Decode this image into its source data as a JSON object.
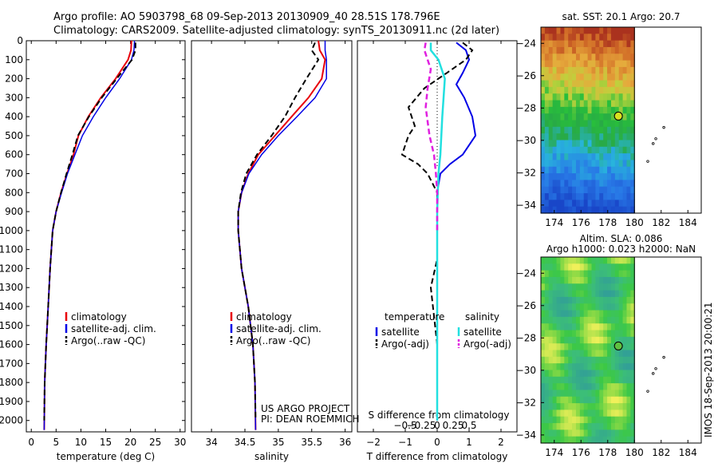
{
  "header": {
    "line1": "Argo profile: AO 5903798_68 09-Sep-2013 20130909_40 28.51S 178.796E",
    "line2": "Climatology: CARS2009. Satellite-adjusted climatology: synTS_20130911.nc (2d later)"
  },
  "footer_credit": "IMOS 18-Sep-2013 20:00:21",
  "colors": {
    "climatology": "#e8000b",
    "satellite": "#0000e6",
    "argo": "#000000",
    "salinity_sat": "#22e0e0",
    "salinity_argo": "#e020e0"
  },
  "chart_data": [
    {
      "type": "line",
      "xlabel": "temperature (deg C)",
      "ylabel": "",
      "xlim": [
        -1,
        31
      ],
      "ylim": [
        2060,
        0
      ],
      "xticks": [
        0,
        5,
        10,
        15,
        20,
        25,
        30
      ],
      "yticks": [
        0,
        100,
        200,
        300,
        400,
        500,
        600,
        700,
        800,
        900,
        1000,
        1100,
        1200,
        1300,
        1400,
        1500,
        1600,
        1700,
        1800,
        1900,
        2000
      ],
      "legend": [
        "climatology",
        "satellite-adj. clim.",
        "Argo(..raw -QC)"
      ],
      "legend_placement": "lower-right",
      "series": [
        {
          "name": "climatology",
          "x": [
            20.2,
            20.1,
            19.5,
            17.0,
            14.0,
            11.5,
            9.5,
            8.5,
            7.2,
            6.0,
            5.0,
            4.3,
            3.8,
            3.4,
            3.0,
            2.7,
            2.6
          ],
          "y": [
            0,
            50,
            100,
            200,
            300,
            400,
            500,
            600,
            700,
            800,
            900,
            1000,
            1200,
            1400,
            1600,
            1800,
            2050
          ]
        },
        {
          "name": "satellite-adj. clim.",
          "x": [
            20.8,
            20.7,
            20.2,
            17.8,
            15.0,
            12.5,
            10.3,
            8.8,
            7.3,
            6.1,
            5.0,
            4.3,
            3.8,
            3.4,
            3.0,
            2.7,
            2.6
          ],
          "y": [
            0,
            50,
            100,
            200,
            300,
            400,
            500,
            600,
            700,
            800,
            900,
            1000,
            1200,
            1400,
            1600,
            1800,
            2050
          ]
        },
        {
          "name": "Argo(..raw -QC)",
          "x": [
            21.0,
            21.0,
            20.3,
            17.2,
            14.2,
            11.6,
            9.4,
            8.3,
            7.1,
            6.0,
            5.0,
            4.3,
            3.8,
            3.4,
            3.0,
            2.7,
            2.6
          ],
          "y": [
            10,
            50,
            100,
            200,
            300,
            400,
            500,
            600,
            700,
            800,
            900,
            1000,
            1200,
            1400,
            1600,
            1800,
            2000
          ]
        }
      ]
    },
    {
      "type": "line",
      "xlabel": "salinity",
      "ylabel": "",
      "xlim": [
        33.7,
        36.1
      ],
      "ylim": [
        2060,
        0
      ],
      "xticks": [
        34,
        34.5,
        35,
        35.5,
        36
      ],
      "xticklabels": [
        "34",
        "34.5",
        "35",
        "35.5",
        "36"
      ],
      "legend": [
        "climatology",
        "satellite-adj. clim.",
        "Argo(..raw -QC)"
      ],
      "legend_placement": "lower-right",
      "annotation": [
        "US ARGO PROJECT",
        "PI: DEAN ROEMMICH"
      ],
      "series": [
        {
          "name": "climatology",
          "x": [
            35.6,
            35.62,
            35.7,
            35.65,
            35.45,
            35.2,
            34.95,
            34.7,
            34.55,
            34.45,
            34.4,
            34.4,
            34.45,
            34.55,
            34.62,
            34.65,
            34.66
          ],
          "y": [
            0,
            50,
            100,
            200,
            300,
            400,
            500,
            600,
            700,
            800,
            900,
            1000,
            1200,
            1400,
            1600,
            1800,
            2050
          ]
        },
        {
          "name": "satellite-adj. clim.",
          "x": [
            35.7,
            35.7,
            35.72,
            35.72,
            35.55,
            35.28,
            35.0,
            34.75,
            34.56,
            34.45,
            34.4,
            34.4,
            34.45,
            34.55,
            34.62,
            34.65,
            34.66
          ],
          "y": [
            0,
            50,
            100,
            200,
            300,
            400,
            500,
            600,
            700,
            800,
            900,
            1000,
            1200,
            1400,
            1600,
            1800,
            2050
          ]
        },
        {
          "name": "Argo(..raw -QC)",
          "x": [
            35.55,
            35.5,
            35.6,
            35.42,
            35.25,
            35.1,
            34.9,
            34.68,
            34.52,
            34.44,
            34.4,
            34.4,
            34.45,
            34.55,
            34.62,
            34.65,
            34.66
          ],
          "y": [
            10,
            50,
            100,
            200,
            300,
            400,
            500,
            600,
            700,
            800,
            900,
            1000,
            1200,
            1400,
            1600,
            1800,
            2000
          ]
        }
      ]
    },
    {
      "type": "line",
      "xlabel": "T difference from climatology",
      "xlabel_top": "S difference from climatology",
      "ylabel": "",
      "xlim": [
        -2.5,
        2.5
      ],
      "ylim": [
        2060,
        0
      ],
      "xticks": [
        -2,
        -1,
        0,
        1,
        2
      ],
      "xticklabels": [
        "−2",
        "−1",
        "0",
        "1",
        "2"
      ],
      "xticks_top": [
        -0.5,
        -0.25,
        0,
        0.25,
        0.5
      ],
      "xticklabels_top": [
        "−0.5",
        "−0.25",
        "0",
        "0.25",
        "0.5"
      ],
      "legend_groups": [
        {
          "title": "temperature",
          "entries": [
            "satellite",
            "Argo(-adj)"
          ]
        },
        {
          "title": "salinity",
          "entries": [
            "satellite",
            "Argo(-adj)"
          ]
        }
      ],
      "legend_placement": "lower-center",
      "series": [
        {
          "name": "temperature satellite",
          "x": [
            0.6,
            0.9,
            1.0,
            0.8,
            0.6,
            0.85,
            1.1,
            1.2,
            1.0,
            0.8,
            0.4,
            0.1,
            0,
            0,
            0,
            0
          ],
          "y": [
            10,
            50,
            100,
            170,
            230,
            300,
            400,
            500,
            550,
            600,
            650,
            700,
            800,
            1200,
            1600,
            2000
          ]
        },
        {
          "name": "temperature Argo(-adj)",
          "x": [
            0.8,
            1.1,
            0.9,
            0.3,
            -0.4,
            -0.9,
            -0.7,
            -0.9,
            -1.1,
            -0.6,
            -0.3,
            0,
            0,
            0,
            0,
            -0.2,
            0,
            0
          ],
          "y": [
            10,
            50,
            100,
            170,
            250,
            350,
            450,
            500,
            600,
            650,
            700,
            800,
            1000,
            1100,
            1150,
            1300,
            1600,
            2000
          ]
        },
        {
          "name": "salinity satellite",
          "x": [
            -0.1,
            -0.1,
            0.02,
            0.12,
            0.08,
            0.05,
            0.02,
            0,
            0,
            0
          ],
          "y": [
            10,
            50,
            100,
            200,
            400,
            600,
            700,
            900,
            1500,
            2000
          ]
        },
        {
          "name": "salinity Argo(-adj)",
          "x": [
            -0.18,
            -0.2,
            -0.1,
            -0.15,
            -0.18,
            -0.12,
            -0.05,
            -0.02,
            0,
            0
          ],
          "y": [
            10,
            50,
            150,
            250,
            350,
            500,
            600,
            700,
            800,
            1000
          ]
        }
      ]
    },
    {
      "type": "heatmap",
      "title": "sat. SST: 20.1  Argo: 20.7",
      "xlim": [
        173,
        185
      ],
      "ylim": [
        -34.5,
        -23
      ],
      "xticks": [
        174,
        176,
        178,
        180,
        182,
        184
      ],
      "yticks": [
        -24,
        -26,
        -28,
        -30,
        -32,
        -34
      ],
      "marker": {
        "lon": 178.8,
        "lat": -28.5
      },
      "track": [
        [
          182.2,
          -29.2
        ],
        [
          181.6,
          -29.9
        ],
        [
          181.4,
          -30.2
        ],
        [
          181.0,
          -31.3
        ]
      ]
    },
    {
      "type": "heatmap",
      "title": "Altim. SLA: 0.086",
      "subtitle": "Argo h1000: 0.023  h2000: NaN",
      "xlim": [
        173,
        185
      ],
      "ylim": [
        -34.5,
        -23
      ],
      "xticks": [
        174,
        176,
        178,
        180,
        182,
        184
      ],
      "yticks": [
        -24,
        -26,
        -28,
        -30,
        -32,
        -34
      ],
      "marker": {
        "lon": 178.8,
        "lat": -28.5
      },
      "track": [
        [
          182.2,
          -29.2
        ],
        [
          181.6,
          -29.9
        ],
        [
          181.4,
          -30.2
        ],
        [
          181.0,
          -31.3
        ]
      ]
    }
  ]
}
